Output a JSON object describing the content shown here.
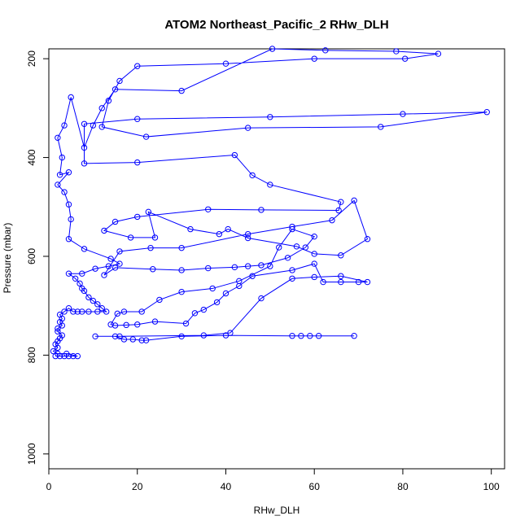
{
  "colors": {
    "series": "#0000ff",
    "axes": "#000000",
    "background": "#ffffff"
  },
  "chart_data": {
    "type": "line",
    "title": "ATOM2 Northeast_Pacific_2 RHw_DLH",
    "xlabel": "RHw_DLH",
    "ylabel": "Pressure (mbar)",
    "xlim": [
      0,
      103
    ],
    "ylim": [
      1030,
      180
    ],
    "y_reversed": true,
    "grid": false,
    "markers": "open-circle",
    "x_ticks": [
      0,
      20,
      40,
      60,
      80,
      100
    ],
    "y_ticks": [
      200,
      400,
      600,
      800,
      1000
    ],
    "series": [
      {
        "values": [
          [
            1.5,
            802
          ],
          [
            2.5,
            802
          ],
          [
            3.5,
            802
          ],
          [
            4.5,
            802
          ],
          [
            5.5,
            802
          ],
          [
            6.5,
            802
          ],
          [
            4.0,
            797
          ],
          [
            2.0,
            797
          ],
          [
            1.0,
            792
          ],
          [
            2.0,
            785
          ],
          [
            1.5,
            778
          ],
          [
            2.0,
            772
          ],
          [
            2.5,
            766
          ],
          [
            3.0,
            760
          ],
          [
            2.0,
            752
          ],
          [
            2.0,
            746
          ],
          [
            3.0,
            740
          ],
          [
            2.5,
            733
          ],
          [
            3.0,
            726
          ],
          [
            2.5,
            718
          ],
          [
            3.5,
            712
          ],
          [
            4.5,
            705
          ],
          [
            5.5,
            712
          ],
          [
            6.5,
            712
          ],
          [
            7.5,
            712
          ],
          [
            9.0,
            712
          ],
          [
            11.0,
            712
          ],
          [
            13.0,
            712
          ],
          [
            12.0,
            705
          ],
          [
            11.0,
            697
          ],
          [
            10.0,
            690
          ],
          [
            9.0,
            683
          ],
          [
            8.0,
            670
          ],
          [
            7.5,
            665
          ],
          [
            7.0,
            655
          ],
          [
            6.0,
            645
          ],
          [
            4.5,
            635
          ],
          [
            7.5,
            635
          ],
          [
            10.5,
            625
          ],
          [
            13.5,
            620
          ],
          [
            16.0,
            615
          ],
          [
            14.0,
            605
          ],
          [
            8.0,
            585
          ],
          [
            4.5,
            565
          ],
          [
            5.0,
            525
          ],
          [
            4.5,
            495
          ],
          [
            3.5,
            470
          ],
          [
            2.0,
            455
          ],
          [
            4.5,
            430
          ],
          [
            2.5,
            435
          ],
          [
            3.0,
            400
          ],
          [
            2.0,
            360
          ],
          [
            3.5,
            335
          ],
          [
            5.0,
            278
          ],
          [
            8.0,
            380
          ],
          [
            10.0,
            335
          ],
          [
            12.0,
            300
          ],
          [
            15.0,
            262
          ],
          [
            30.0,
            265
          ],
          [
            50.5,
            180
          ],
          [
            62.5,
            183
          ],
          [
            78.5,
            185
          ],
          [
            88.0,
            190
          ],
          [
            80.5,
            200
          ],
          [
            60.0,
            200
          ],
          [
            40.0,
            210
          ],
          [
            20.0,
            215
          ],
          [
            16.0,
            245
          ],
          [
            13.5,
            285
          ],
          [
            12.0,
            338
          ],
          [
            22.0,
            358
          ],
          [
            45.0,
            340
          ],
          [
            75.0,
            338
          ],
          [
            99.0,
            308
          ],
          [
            80.0,
            312
          ],
          [
            50.0,
            318
          ],
          [
            20.0,
            322
          ],
          [
            8.0,
            332
          ],
          [
            8.0,
            412
          ],
          [
            20.0,
            410
          ],
          [
            42.0,
            395
          ],
          [
            46.0,
            436
          ],
          [
            50.0,
            455
          ],
          [
            66.0,
            490
          ],
          [
            65.5,
            507
          ],
          [
            48.0,
            506
          ],
          [
            36.0,
            505
          ],
          [
            20.0,
            520
          ],
          [
            15.0,
            530
          ],
          [
            12.5,
            548
          ],
          [
            18.5,
            562
          ],
          [
            24.0,
            562
          ],
          [
            22.5,
            510
          ],
          [
            32.0,
            545
          ],
          [
            38.5,
            555
          ],
          [
            40.5,
            545
          ],
          [
            45.0,
            563
          ],
          [
            56.0,
            580
          ],
          [
            60.0,
            595
          ],
          [
            66.0,
            598
          ],
          [
            72.0,
            565
          ],
          [
            69.0,
            487
          ],
          [
            64.0,
            527
          ],
          [
            55.0,
            540
          ],
          [
            45.0,
            555
          ],
          [
            30.0,
            583
          ],
          [
            23.0,
            583
          ],
          [
            16.0,
            590
          ],
          [
            12.5,
            638
          ],
          [
            15.0,
            623
          ],
          [
            23.5,
            626
          ],
          [
            30.0,
            628
          ],
          [
            36.0,
            624
          ],
          [
            42.0,
            622
          ],
          [
            45.0,
            620
          ],
          [
            48.0,
            618
          ],
          [
            54.0,
            603
          ],
          [
            58.0,
            582
          ],
          [
            60.0,
            560
          ],
          [
            55.0,
            545
          ],
          [
            52.0,
            582
          ],
          [
            50.0,
            620
          ],
          [
            43.0,
            650
          ],
          [
            37.0,
            665
          ],
          [
            30.0,
            672
          ],
          [
            25.0,
            688
          ],
          [
            21.0,
            712
          ],
          [
            17.0,
            712
          ],
          [
            15.5,
            716
          ],
          [
            14.0,
            738
          ],
          [
            15.0,
            740
          ],
          [
            17.5,
            739
          ],
          [
            20.0,
            738
          ],
          [
            24.0,
            732
          ],
          [
            31.0,
            736
          ],
          [
            33.0,
            715
          ],
          [
            35.0,
            708
          ],
          [
            38.0,
            693
          ],
          [
            40.0,
            675
          ],
          [
            43.0,
            660
          ],
          [
            46.0,
            640
          ],
          [
            55.0,
            628
          ],
          [
            60.0,
            615
          ],
          [
            62.0,
            652
          ],
          [
            66.0,
            652
          ],
          [
            70.0,
            652
          ],
          [
            72.0,
            652
          ],
          [
            66.0,
            640
          ],
          [
            60.0,
            642
          ],
          [
            55.0,
            645
          ],
          [
            48.0,
            685
          ],
          [
            41.0,
            755
          ],
          [
            35.0,
            760
          ],
          [
            16.0,
            762
          ],
          [
            10.5,
            762
          ],
          [
            15.0,
            762
          ],
          [
            17.0,
            768
          ],
          [
            19.0,
            768
          ],
          [
            21.0,
            770
          ],
          [
            22.0,
            770
          ],
          [
            30.0,
            762
          ],
          [
            40.0,
            760
          ],
          [
            55.0,
            761
          ],
          [
            57.0,
            761
          ],
          [
            59.0,
            761
          ],
          [
            61.0,
            761
          ],
          [
            69.0,
            761
          ]
        ]
      }
    ]
  }
}
